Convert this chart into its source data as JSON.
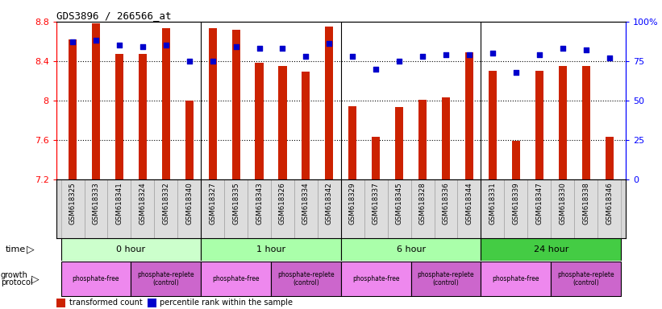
{
  "title": "GDS3896 / 266566_at",
  "samples": [
    "GSM618325",
    "GSM618333",
    "GSM618341",
    "GSM618324",
    "GSM618332",
    "GSM618340",
    "GSM618327",
    "GSM618335",
    "GSM618343",
    "GSM618326",
    "GSM618334",
    "GSM618342",
    "GSM618329",
    "GSM618337",
    "GSM618345",
    "GSM618328",
    "GSM618336",
    "GSM618344",
    "GSM618331",
    "GSM618339",
    "GSM618347",
    "GSM618330",
    "GSM618338",
    "GSM618346"
  ],
  "bar_values": [
    8.62,
    8.78,
    8.47,
    8.47,
    8.73,
    8.0,
    8.73,
    8.72,
    8.38,
    8.35,
    8.29,
    8.75,
    7.94,
    7.63,
    7.93,
    8.01,
    8.03,
    8.49,
    8.3,
    7.59,
    8.3,
    8.35,
    8.35,
    7.63
  ],
  "percentile_values": [
    87,
    88,
    85,
    84,
    85,
    75,
    75,
    84,
    83,
    83,
    78,
    86,
    78,
    70,
    75,
    78,
    79,
    79,
    80,
    68,
    79,
    83,
    82,
    77
  ],
  "bar_color": "#cc2200",
  "dot_color": "#0000cc",
  "ylim_left": [
    7.2,
    8.8
  ],
  "ylim_right": [
    0,
    100
  ],
  "yticks_left": [
    7.2,
    7.6,
    8.0,
    8.4,
    8.8
  ],
  "ytick_labels_left": [
    "7.2",
    "7.6",
    "8",
    "8.4",
    "8.8"
  ],
  "yticks_right": [
    0,
    25,
    50,
    75,
    100
  ],
  "ytick_labels_right": [
    "0",
    "25",
    "50",
    "75",
    "100%"
  ],
  "grid_values": [
    7.6,
    8.0,
    8.4
  ],
  "time_groups": [
    {
      "label": "0 hour",
      "start": 0,
      "end": 6,
      "color": "#ccffcc"
    },
    {
      "label": "1 hour",
      "start": 6,
      "end": 12,
      "color": "#aaffaa"
    },
    {
      "label": "6 hour",
      "start": 12,
      "end": 18,
      "color": "#aaffaa"
    },
    {
      "label": "24 hour",
      "start": 18,
      "end": 24,
      "color": "#44dd44"
    }
  ],
  "protocol_groups": [
    {
      "label": "phosphate-free",
      "start": 0,
      "end": 3,
      "color": "#ee88ee"
    },
    {
      "label": "phosphate-replete\n(control)",
      "start": 3,
      "end": 6,
      "color": "#cc66cc"
    },
    {
      "label": "phosphate-free",
      "start": 6,
      "end": 9,
      "color": "#ee88ee"
    },
    {
      "label": "phosphate-replete\n(control)",
      "start": 9,
      "end": 12,
      "color": "#cc66cc"
    },
    {
      "label": "phosphate-free",
      "start": 12,
      "end": 15,
      "color": "#ee88ee"
    },
    {
      "label": "phosphate-replete\n(control)",
      "start": 15,
      "end": 18,
      "color": "#cc66cc"
    },
    {
      "label": "phosphate-free",
      "start": 18,
      "end": 21,
      "color": "#ee88ee"
    },
    {
      "label": "phosphate-replete\n(control)",
      "start": 21,
      "end": 24,
      "color": "#cc66cc"
    }
  ]
}
